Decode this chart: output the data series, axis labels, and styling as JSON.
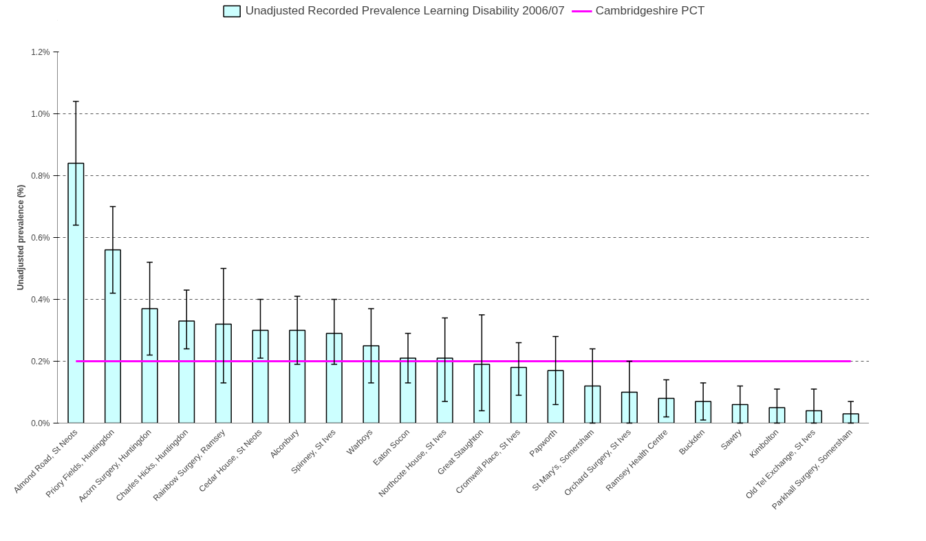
{
  "chart_data": {
    "type": "bar",
    "ylabel": "Unadjusted prevalence (%)",
    "categories": [
      "Almond Road, St Neots",
      "Priory Fields, Huntingdon",
      "Acorn Surgery, Huntingdon",
      "Charles Hicks, Huntingdon",
      "Rainbow Surgery, Ramsey",
      "Cedar House, St Neots",
      "Alconbury",
      "Spinney, St Ives",
      "Warboys",
      "Eaton Socon",
      "Northcote House, St Ives",
      "Great Staughton",
      "Cromwell Place, St Ives",
      "Papworth",
      "St Mary's, Somersham",
      "Orchard Surgery, St Ives",
      "Ramsey Health Centre",
      "Buckden",
      "Sawtry",
      "Kimbolton",
      "Old Tel Exchange, St Ives",
      "Parkhall Surgery, Somersham"
    ],
    "series": [
      {
        "name": "Unadjusted Recorded Prevalence Learning Disability 2006/07",
        "color": "#ccffff",
        "values": [
          0.84,
          0.56,
          0.37,
          0.33,
          0.32,
          0.3,
          0.3,
          0.29,
          0.25,
          0.21,
          0.21,
          0.19,
          0.18,
          0.17,
          0.12,
          0.1,
          0.08,
          0.07,
          0.06,
          0.05,
          0.04,
          0.03
        ],
        "errors": [
          [
            0.64,
            1.04
          ],
          [
            0.42,
            0.7
          ],
          [
            0.22,
            0.52
          ],
          [
            0.24,
            0.43
          ],
          [
            0.13,
            0.5
          ],
          [
            0.21,
            0.4
          ],
          [
            0.19,
            0.41
          ],
          [
            0.19,
            0.4
          ],
          [
            0.13,
            0.37
          ],
          [
            0.13,
            0.29
          ],
          [
            0.07,
            0.34
          ],
          [
            0.04,
            0.35
          ],
          [
            0.09,
            0.26
          ],
          [
            0.06,
            0.28
          ],
          [
            0.0,
            0.24
          ],
          [
            0.0,
            0.2
          ],
          [
            0.02,
            0.14
          ],
          [
            0.01,
            0.13
          ],
          [
            0.0,
            0.12
          ],
          [
            0.0,
            0.11
          ],
          [
            0.0,
            0.11
          ],
          [
            0.0,
            0.07
          ]
        ]
      },
      {
        "name": "Cambridgeshire PCT",
        "type": "line",
        "color": "#ff00ff",
        "values": [
          0.2,
          0.2,
          0.2,
          0.2,
          0.2,
          0.2,
          0.2,
          0.2,
          0.2,
          0.2,
          0.2,
          0.2,
          0.2,
          0.2,
          0.2,
          0.2,
          0.2,
          0.2,
          0.2,
          0.2,
          0.2,
          0.2
        ]
      }
    ],
    "ylim": [
      0,
      1.2
    ],
    "yticks": [
      {
        "value": 0,
        "label": "0.0%"
      },
      {
        "value": 0.2,
        "label": "0.2%"
      },
      {
        "value": 0.4,
        "label": "0.4%"
      },
      {
        "value": 0.6,
        "label": "0.6%"
      },
      {
        "value": 0.8,
        "label": "0.8%"
      },
      {
        "value": 1.0,
        "label": "1.0%"
      },
      {
        "value": 1.2,
        "label": "1.2%"
      }
    ],
    "grid": "y",
    "legend": "top",
    "marker": "none",
    "line_style": "solid"
  }
}
